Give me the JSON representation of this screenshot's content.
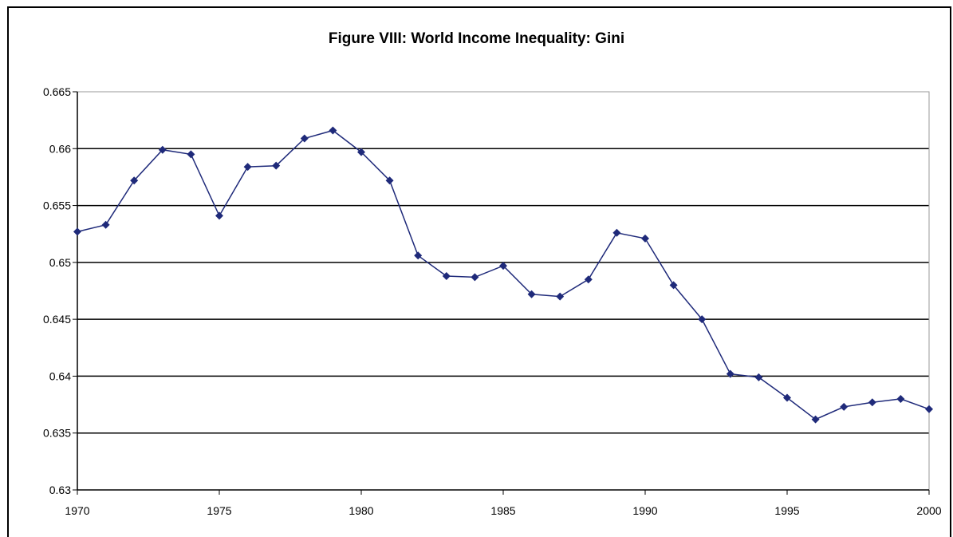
{
  "chart_data": {
    "type": "line",
    "title": "Figure VIII: World Income Inequality: Gini",
    "xlabel": "",
    "ylabel": "",
    "xlim": [
      1970,
      2000
    ],
    "ylim": [
      0.63,
      0.665
    ],
    "x_ticks": [
      "1970",
      "1975",
      "1980",
      "1985",
      "1990",
      "1995",
      "2000"
    ],
    "y_ticks": [
      "0.63",
      "0.635",
      "0.64",
      "0.645",
      "0.65",
      "0.655",
      "0.66",
      "0.665"
    ],
    "grid": "horizontal",
    "legend": "none",
    "colors": {
      "series": "#1f2a7a",
      "grid": "#000000",
      "plot_border": "#999999"
    },
    "series": [
      {
        "x": [
          1970,
          1971,
          1972,
          1973,
          1974,
          1975,
          1976,
          1977,
          1978,
          1979,
          1980,
          1981,
          1982,
          1983,
          1984,
          1985,
          1986,
          1987,
          1988,
          1989,
          1990,
          1991,
          1992,
          1993,
          1994,
          1995,
          1996,
          1997,
          1998,
          1999,
          2000
        ],
        "values": [
          0.6527,
          0.6533,
          0.6572,
          0.6599,
          0.6595,
          0.6541,
          0.6584,
          0.6585,
          0.6609,
          0.6616,
          0.6597,
          0.6572,
          0.6506,
          0.6488,
          0.6487,
          0.6497,
          0.6472,
          0.647,
          0.6485,
          0.6526,
          0.6521,
          0.648,
          0.645,
          0.6402,
          0.6399,
          0.6381,
          0.6362,
          0.6373,
          0.6377,
          0.638,
          0.6371
        ]
      }
    ]
  }
}
